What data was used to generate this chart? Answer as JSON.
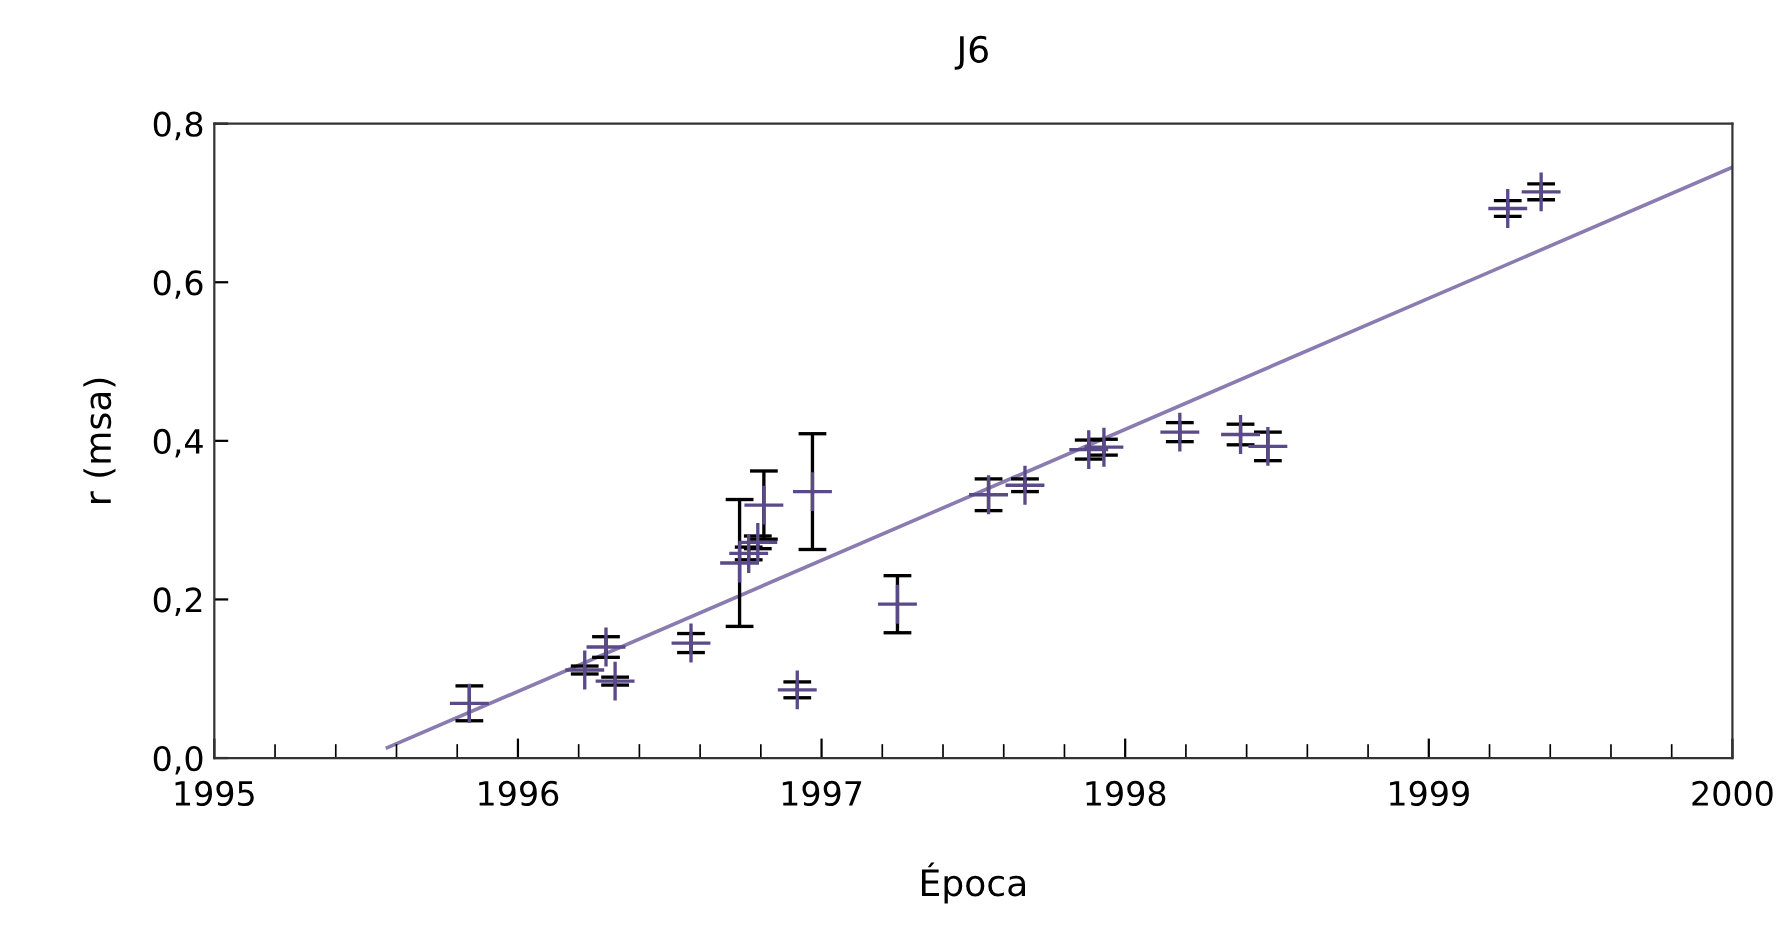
{
  "chart_data": {
    "type": "scatter",
    "title": "J6",
    "xlabel": "Época",
    "ylabel": "r (msa)",
    "xlim": [
      1995,
      2000
    ],
    "xticks": [
      1995,
      1996,
      1997,
      1998,
      1999,
      2000
    ],
    "ylim": [
      0,
      0.8
    ],
    "yticks": [
      {
        "value": 0,
        "label": "0,0"
      },
      {
        "value": 0.2,
        "label": "0,2"
      },
      {
        "value": 0.4,
        "label": "0,4"
      },
      {
        "value": 0.6,
        "label": "0,6"
      },
      {
        "value": 0.8,
        "label": "0,8"
      }
    ],
    "grid": false,
    "legend": false,
    "series": [
      {
        "marker": "cross",
        "color": "#5b4a8a",
        "x": [
          1995.84,
          1996.22,
          1996.29,
          1996.32,
          1996.57,
          1996.73,
          1996.76,
          1996.79,
          1996.81,
          1996.92,
          1996.97,
          1997.25,
          1997.55,
          1997.67,
          1997.88,
          1997.93,
          1998.18,
          1998.38,
          1998.47,
          1999.26,
          1999.37
        ],
        "values": [
          0.069,
          0.111,
          0.14,
          0.097,
          0.145,
          0.246,
          0.258,
          0.272,
          0.319,
          0.086,
          0.336,
          0.194,
          0.332,
          0.344,
          0.389,
          0.392,
          0.411,
          0.408,
          0.393,
          0.693,
          0.714
        ],
        "errors": [
          0.022,
          0.005,
          0.013,
          0.005,
          0.012,
          0.08,
          0.008,
          0.008,
          0.043,
          0.01,
          0.073,
          0.036,
          0.02,
          0.008,
          0.012,
          0.01,
          0.012,
          0.013,
          0.018,
          0.01,
          0.01
        ]
      },
      {
        "type": "line",
        "color": "#8a7bb0",
        "x": [
          1995.57,
          2000
        ],
        "values": [
          0.013,
          0.745
        ]
      }
    ]
  }
}
